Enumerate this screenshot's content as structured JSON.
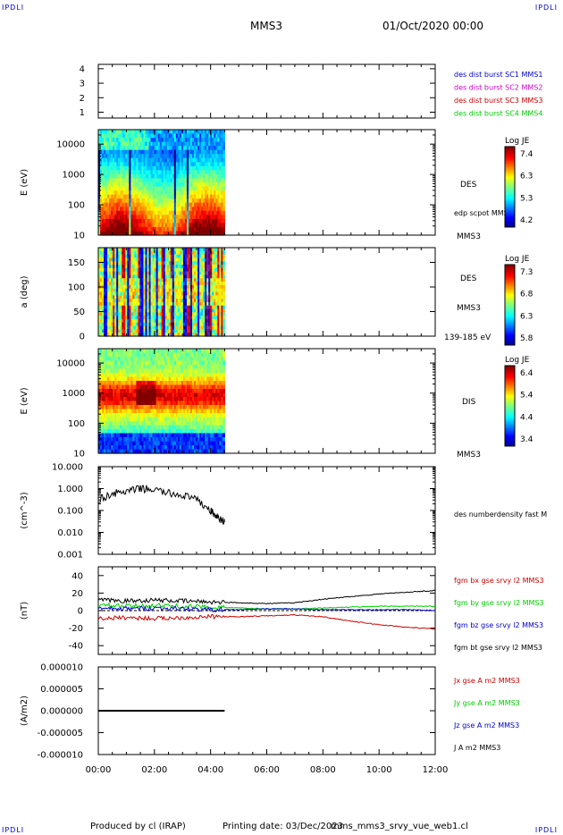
{
  "header": {
    "corner_left_top": "IPDLI",
    "corner_right_top": "IPDLI",
    "corner_left_bottom": "IPDLI",
    "corner_right_bottom": "IPDLI",
    "spacecraft": "MMS3",
    "datetime": "01/Oct/2020 00:00"
  },
  "footer": {
    "produced_by": "Produced by cl (IRAP)",
    "printing_date": "Printing date: 03/Dec/2023",
    "filename": "mms_mms3_srvy_vue_web1.cl"
  },
  "colors": {
    "blue": "#0000cc",
    "magenta": "#cc00cc",
    "red": "#cc0000",
    "green": "#00cc00",
    "black": "#000000"
  },
  "chart_data": [
    {
      "type": "line",
      "panel": "burst",
      "ytick_labels": [
        "1",
        "2",
        "3",
        "4"
      ],
      "ylim": [
        0.6,
        4.3
      ],
      "legend": [
        {
          "name": "des dist burst SC1 MMS1",
          "color": "#0000cc"
        },
        {
          "name": "des dist burst SC2 MMS2",
          "color": "#cc00cc"
        },
        {
          "name": "des dist burst SC3 MMS3",
          "color": "#cc0000"
        },
        {
          "name": "des dist burst SC4 MMS4",
          "color": "#00cc00"
        }
      ]
    },
    {
      "type": "heatmap",
      "panel": "des_energy",
      "ylabel": "E (eV)",
      "yscale": "log",
      "ylim": [
        10,
        30000
      ],
      "ytick_labels": [
        "10",
        "100",
        "1000",
        "10000"
      ],
      "data_end_hour": 4.5,
      "right_labels": [
        "DES",
        "edp scpot MMS3",
        "MMS3"
      ],
      "colorbar": {
        "title": "Log JE",
        "ticks": [
          "7.4",
          "6.3",
          "5.3",
          "4.2"
        ]
      }
    },
    {
      "type": "heatmap",
      "panel": "des_pitch",
      "ylabel": "a (deg)",
      "ylim": [
        0,
        180
      ],
      "ytick_labels": [
        "0",
        "50",
        "100",
        "150"
      ],
      "data_end_hour": 4.5,
      "right_labels": [
        "DES",
        "MMS3",
        "139-185 eV"
      ],
      "colorbar": {
        "title": "Log JE",
        "ticks": [
          "7.3",
          "6.8",
          "6.3",
          "5.8"
        ]
      }
    },
    {
      "type": "heatmap",
      "panel": "dis_energy",
      "ylabel": "E (eV)",
      "yscale": "log",
      "ylim": [
        10,
        30000
      ],
      "ytick_labels": [
        "10",
        "100",
        "1000",
        "10000"
      ],
      "data_end_hour": 4.5,
      "right_labels": [
        "DIS",
        "MMS3"
      ],
      "colorbar": {
        "title": "Log JE",
        "ticks": [
          "6.4",
          "5.4",
          "4.4",
          "3.4"
        ]
      }
    },
    {
      "type": "line",
      "panel": "density",
      "ylabel": "(cm^-3)",
      "yscale": "log",
      "ylim": [
        0.001,
        10
      ],
      "ytick_labels": [
        "0.001",
        "0.010",
        "0.100",
        "1.000",
        "10.000"
      ],
      "legend": [
        {
          "name": "des numberdensity fast M",
          "color": "#000000"
        }
      ],
      "x": [
        0.0,
        0.5,
        1.0,
        1.5,
        2.0,
        2.5,
        3.0,
        3.5,
        4.0,
        4.3,
        4.5
      ],
      "y": [
        0.3,
        0.6,
        0.7,
        1.0,
        0.9,
        0.6,
        0.5,
        0.3,
        0.1,
        0.04,
        0.03
      ]
    },
    {
      "type": "line",
      "panel": "bfield",
      "ylabel": "(nT)",
      "ylim": [
        -50,
        50
      ],
      "ytick_labels": [
        "-40",
        "-20",
        "0",
        "20",
        "40"
      ],
      "x": [
        0,
        1,
        2,
        3,
        4,
        5,
        6,
        7,
        8,
        9,
        10,
        11,
        12
      ],
      "series": [
        {
          "name": "fgm bx gse srvy l2 MMS3",
          "color": "#cc0000",
          "values": [
            -9,
            -8,
            -9,
            -8,
            -7,
            -7,
            -6,
            -5,
            -7,
            -12,
            -16,
            -19,
            -21
          ]
        },
        {
          "name": "fgm by gse srvy l2 MMS3",
          "color": "#00cc00",
          "values": [
            6,
            5,
            6,
            5,
            4,
            3,
            2,
            2,
            3,
            4,
            5,
            5,
            5
          ]
        },
        {
          "name": "fgm bz gse srvy l2 MMS3",
          "color": "#0000cc",
          "values": [
            2,
            2,
            3,
            2,
            1,
            1,
            2,
            2,
            1,
            1,
            1,
            1,
            0
          ]
        },
        {
          "name": "fgm bt gse srvy l2 MMS3",
          "color": "#000000",
          "values": [
            12,
            11,
            12,
            11,
            10,
            9,
            8,
            9,
            13,
            16,
            19,
            21,
            23
          ]
        }
      ]
    },
    {
      "type": "line",
      "panel": "current",
      "ylabel": "(A/m2)",
      "ylim": [
        -1e-05,
        1e-05
      ],
      "ytick_labels": [
        "-0.000010",
        "-0.000005",
        "0.000000",
        "0.000005",
        "0.000010"
      ],
      "legend": [
        {
          "name": "Jx gse A m2 MMS3",
          "color": "#cc0000"
        },
        {
          "name": "Jy gse A m2 MMS3",
          "color": "#00cc00"
        },
        {
          "name": "Jz gse A m2 MMS3",
          "color": "#0000cc"
        },
        {
          "name": "J A m2 MMS3",
          "color": "#000000"
        }
      ],
      "x": [
        0,
        4.5
      ],
      "y": [
        0,
        0
      ]
    }
  ],
  "x_axis": {
    "xlim": [
      0,
      12
    ],
    "tick_labels": [
      "00:00",
      "02:00",
      "04:00",
      "06:00",
      "08:00",
      "10:00",
      "12:00"
    ]
  }
}
